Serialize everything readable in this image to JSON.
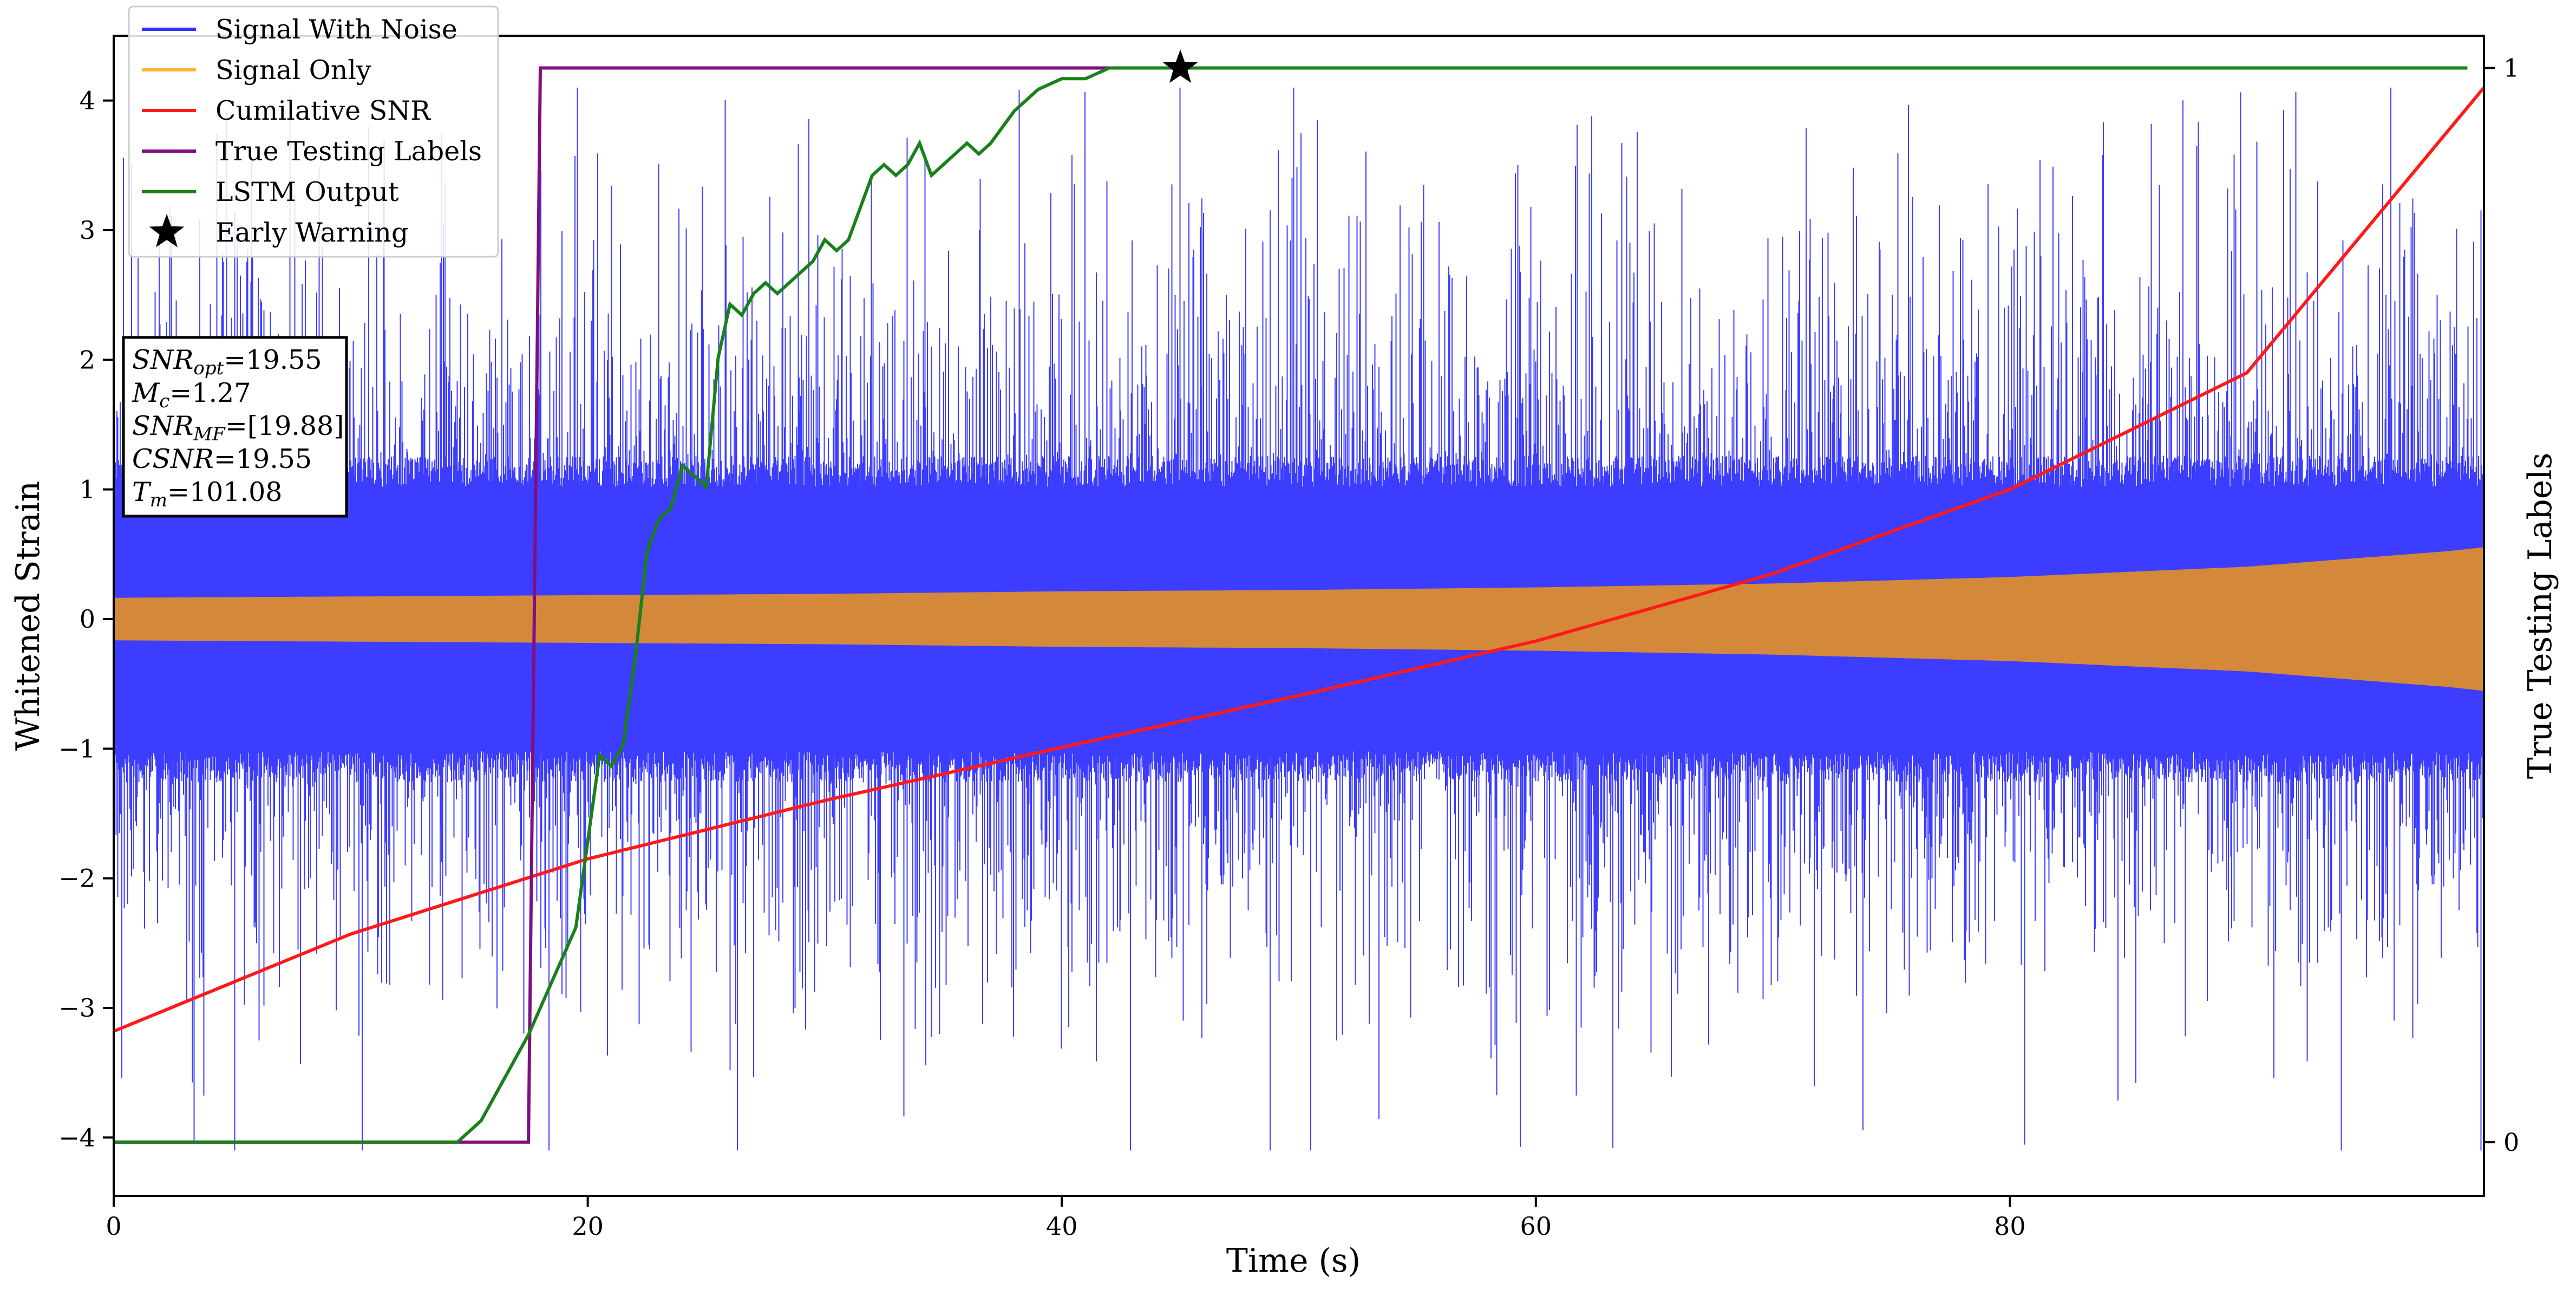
{
  "chart_data": {
    "type": "line",
    "xlabel": "Time (s)",
    "ylabel": "Whitened Strain",
    "y2label": "True Testing Labels",
    "xlim": [
      0,
      100
    ],
    "ylim": [
      -4.45,
      4.5
    ],
    "y2lim": [
      -0.05,
      1.03
    ],
    "grid": false,
    "legend_placement": "top-left",
    "xticks": [
      0,
      20,
      40,
      60,
      80
    ],
    "yticks": [
      -4,
      -3,
      -2,
      -1,
      0,
      1,
      2,
      3,
      4
    ],
    "y2ticks": [
      0,
      1
    ],
    "colors": {
      "noise": "#3333ff",
      "signal": "#d4893a",
      "signal_legend": "#ffb733",
      "snr": "#ff1a1a",
      "labels": "#7f0f7f",
      "lstm": "#1a801a",
      "star": "#000000"
    },
    "legend": [
      {
        "label": "Signal With Noise",
        "key": "noise"
      },
      {
        "label": "Signal Only",
        "key": "signal_legend"
      },
      {
        "label": "Cumilative SNR",
        "key": "snr"
      },
      {
        "label": "True Testing Labels",
        "key": "labels"
      },
      {
        "label": "LSTM Output",
        "key": "lstm"
      },
      {
        "label": "Early Warning",
        "key": "star",
        "marker": "star"
      }
    ],
    "series": [
      {
        "name": "Signal With Noise",
        "axis": "left",
        "style": "noise-band",
        "amplitude_estimate": {
          "inner": 1.2,
          "typical_peak": 2.6,
          "max_peak": 4.1
        }
      },
      {
        "name": "Signal Only",
        "axis": "left",
        "style": "chirp-envelope",
        "x": [
          0,
          10,
          20,
          30,
          40,
          50,
          60,
          70,
          80,
          90,
          98.5,
          100
        ],
        "envelope": [
          0.16,
          0.17,
          0.18,
          0.19,
          0.21,
          0.22,
          0.24,
          0.27,
          0.32,
          0.4,
          0.52,
          0.55
        ]
      },
      {
        "name": "Cumilative SNR",
        "axis": "left",
        "style": "line",
        "x": [
          0,
          10,
          20,
          30,
          40,
          50,
          60,
          70,
          80,
          90,
          100
        ],
        "y": [
          -3.18,
          -2.43,
          -1.85,
          -1.4,
          -0.99,
          -0.59,
          -0.17,
          0.35,
          1.0,
          1.9,
          4.1
        ]
      },
      {
        "name": "True Testing Labels",
        "axis": "right",
        "style": "line",
        "x": [
          0,
          17.5,
          18,
          45
        ],
        "y": [
          0,
          0,
          1,
          1
        ]
      },
      {
        "name": "LSTM Output",
        "axis": "right",
        "style": "line",
        "x": [
          0,
          14.5,
          15.5,
          16.5,
          17.5,
          18.5,
          19.5,
          20,
          20.5,
          21,
          21.5,
          22,
          22.5,
          23,
          23.5,
          24,
          24.5,
          25,
          25.5,
          26,
          26.5,
          27,
          27.5,
          28,
          28.5,
          29,
          29.5,
          30,
          30.5,
          31,
          31.5,
          32,
          32.5,
          33,
          33.5,
          34,
          34.5,
          35,
          35.5,
          36,
          36.5,
          37,
          38,
          39,
          40,
          41,
          42,
          43,
          44,
          45,
          100
        ],
        "y": [
          0,
          0,
          0.02,
          0.06,
          0.1,
          0.15,
          0.2,
          0.28,
          0.36,
          0.35,
          0.37,
          0.45,
          0.55,
          0.58,
          0.59,
          0.63,
          0.62,
          0.61,
          0.73,
          0.78,
          0.77,
          0.79,
          0.8,
          0.79,
          0.8,
          0.81,
          0.82,
          0.84,
          0.83,
          0.84,
          0.87,
          0.9,
          0.91,
          0.9,
          0.91,
          0.93,
          0.9,
          0.91,
          0.92,
          0.93,
          0.92,
          0.93,
          0.96,
          0.98,
          0.99,
          0.99,
          1.0,
          1.0,
          1.0,
          1.0,
          1.0
        ]
      }
    ],
    "early_warning": {
      "x": 45,
      "y": 1.0
    },
    "info_box": {
      "lines": [
        {
          "sym": "SNR",
          "sub": "opt",
          "val": "=19.55"
        },
        {
          "sym": "M",
          "sub": "c",
          "val": "=1.27"
        },
        {
          "sym": "SNR",
          "sub": "MF",
          "val": "=[19.88]"
        },
        {
          "sym": "CSNR",
          "sub": "",
          "val": "=19.55"
        },
        {
          "sym": "T",
          "sub": "m",
          "val": "=101.08"
        }
      ]
    }
  }
}
